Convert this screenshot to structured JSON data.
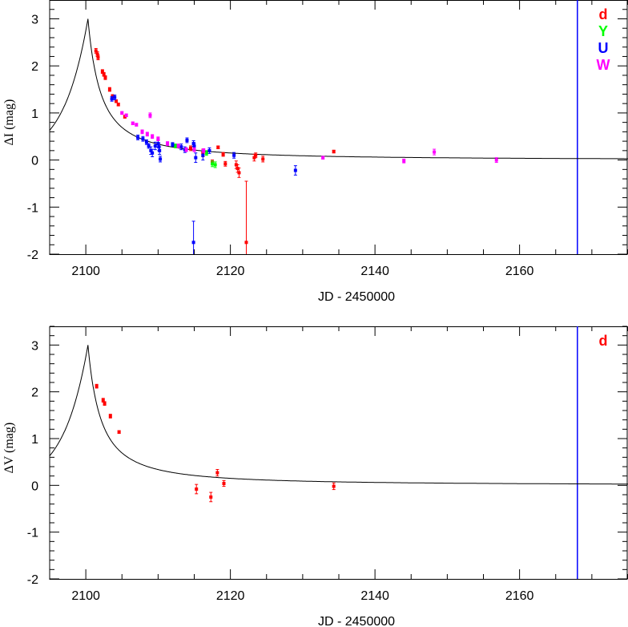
{
  "chart_data": [
    {
      "type": "scatter",
      "xlabel": "JD - 2450000",
      "ylabel": "ΔI (mag)",
      "xlim": [
        2095,
        2175
      ],
      "ylim": [
        -2,
        3.4
      ],
      "xticks": [
        "2100",
        "2120",
        "2140",
        "2160"
      ],
      "yticks": [
        "3",
        "2",
        "1",
        "0",
        "-1",
        "-2"
      ],
      "grid": false,
      "legend_position": "top-right",
      "vline": {
        "x": 2168,
        "color": "#0000ff"
      },
      "model_curve": {
        "peak_x": 2100.3,
        "peak_y": 3.0
      },
      "series": [
        {
          "name": "d",
          "color": "#ff0000",
          "points": [
            [
              2101.4,
              2.32,
              0.05
            ],
            [
              2101.6,
              2.25,
              0.05
            ],
            [
              2101.7,
              2.18,
              0.05
            ],
            [
              2102.3,
              1.88,
              0.04
            ],
            [
              2102.5,
              1.82,
              0.04
            ],
            [
              2102.7,
              1.75,
              0.04
            ],
            [
              2103.3,
              1.5,
              0.04
            ],
            [
              2103.7,
              1.35,
              0.04
            ],
            [
              2104.2,
              1.25,
              0.03
            ],
            [
              2104.5,
              1.18,
              0.03
            ],
            [
              2105.4,
              0.92,
              0.03
            ],
            [
              2114.5,
              0.25,
              0.05
            ],
            [
              2116.2,
              0.15,
              0.08
            ],
            [
              2117.5,
              -0.05,
              0.05
            ],
            [
              2118.3,
              0.27,
              0.03
            ],
            [
              2119.0,
              0.12,
              0.04
            ],
            [
              2119.3,
              -0.08,
              0.05
            ],
            [
              2120.8,
              -0.1,
              0.08
            ],
            [
              2121.0,
              -0.18,
              0.08
            ],
            [
              2121.2,
              -0.27,
              0.1
            ],
            [
              2122.2,
              -1.75,
              1.3
            ],
            [
              2123.3,
              0.05,
              0.07
            ],
            [
              2123.5,
              0.1,
              0.05
            ],
            [
              2124.5,
              0.02,
              0.06
            ],
            [
              2134.3,
              0.18,
              0.03
            ]
          ]
        },
        {
          "name": "Y",
          "color": "#00ff00",
          "points": [
            [
              2112.4,
              0.3,
              0.04
            ],
            [
              2116.7,
              0.15,
              0.05
            ],
            [
              2117.5,
              -0.08,
              0.06
            ],
            [
              2117.9,
              -0.1,
              0.06
            ]
          ]
        },
        {
          "name": "U",
          "color": "#0000ff",
          "points": [
            [
              2103.6,
              1.3,
              0.05
            ],
            [
              2104.0,
              1.33,
              0.05
            ],
            [
              2107.2,
              0.48,
              0.05
            ],
            [
              2107.9,
              0.45,
              0.05
            ],
            [
              2108.4,
              0.38,
              0.05
            ],
            [
              2108.7,
              0.3,
              0.05
            ],
            [
              2109.0,
              0.2,
              0.08
            ],
            [
              2109.2,
              0.15,
              0.08
            ],
            [
              2109.6,
              0.3,
              0.08
            ],
            [
              2110.0,
              0.35,
              0.08
            ],
            [
              2110.1,
              0.28,
              0.08
            ],
            [
              2110.2,
              0.2,
              0.08
            ],
            [
              2110.3,
              0.02,
              0.06
            ],
            [
              2112.0,
              0.33,
              0.04
            ],
            [
              2113.2,
              0.28,
              0.06
            ],
            [
              2113.7,
              0.22,
              0.06
            ],
            [
              2114.0,
              0.42,
              0.05
            ],
            [
              2114.9,
              0.35,
              0.06
            ],
            [
              2115.0,
              0.3,
              0.06
            ],
            [
              2115.2,
              0.05,
              0.1
            ],
            [
              2114.9,
              -1.75,
              0.45
            ],
            [
              2116.2,
              0.1,
              0.1
            ],
            [
              2117.1,
              0.2,
              0.06
            ],
            [
              2120.5,
              0.1,
              0.06
            ],
            [
              2129.0,
              -0.22,
              0.1
            ]
          ]
        },
        {
          "name": "W",
          "color": "#ff00ff",
          "points": [
            [
              2105.0,
              1.0,
              0.03
            ],
            [
              2105.6,
              0.95,
              0.03
            ],
            [
              2106.5,
              0.78,
              0.03
            ],
            [
              2107.0,
              0.75,
              0.03
            ],
            [
              2107.8,
              0.6,
              0.04
            ],
            [
              2108.5,
              0.55,
              0.04
            ],
            [
              2108.9,
              0.95,
              0.05
            ],
            [
              2109.2,
              0.5,
              0.04
            ],
            [
              2110.0,
              0.45,
              0.04
            ],
            [
              2111.3,
              0.35,
              0.04
            ],
            [
              2112.8,
              0.3,
              0.04
            ],
            [
              2113.9,
              0.22,
              0.04
            ],
            [
              2115.0,
              0.22,
              0.04
            ],
            [
              2116.3,
              0.2,
              0.04
            ],
            [
              2132.8,
              0.05,
              0.03
            ],
            [
              2144.0,
              -0.02,
              0.04
            ],
            [
              2148.2,
              0.17,
              0.06
            ],
            [
              2156.8,
              0.0,
              0.05
            ]
          ]
        }
      ]
    },
    {
      "type": "scatter",
      "xlabel": "JD - 2450000",
      "ylabel": "ΔV (mag)",
      "xlim": [
        2095,
        2175
      ],
      "ylim": [
        -2,
        3.4
      ],
      "xticks": [
        "2100",
        "2120",
        "2140",
        "2160"
      ],
      "yticks": [
        "3",
        "2",
        "1",
        "0",
        "-1",
        "-2"
      ],
      "grid": false,
      "legend_position": "top-right",
      "vline": {
        "x": 2168,
        "color": "#0000ff"
      },
      "model_curve": {
        "peak_x": 2100.3,
        "peak_y": 3.0
      },
      "series": [
        {
          "name": "d",
          "color": "#ff0000",
          "points": [
            [
              2101.5,
              2.12,
              0.04
            ],
            [
              2102.4,
              1.82,
              0.04
            ],
            [
              2102.6,
              1.75,
              0.04
            ],
            [
              2103.4,
              1.48,
              0.04
            ],
            [
              2104.6,
              1.14,
              0.03
            ],
            [
              2115.3,
              -0.08,
              0.1
            ],
            [
              2117.3,
              -0.25,
              0.1
            ],
            [
              2118.2,
              0.27,
              0.07
            ],
            [
              2119.1,
              0.04,
              0.06
            ],
            [
              2134.3,
              -0.02,
              0.07
            ]
          ]
        }
      ]
    }
  ]
}
